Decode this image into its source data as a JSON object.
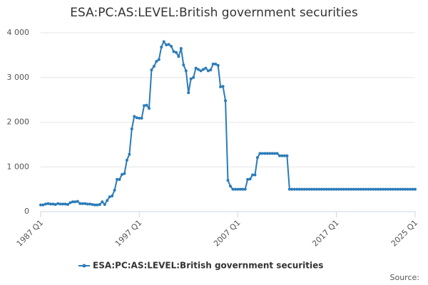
{
  "chart_data": {
    "type": "line",
    "title": "ESA:PC:AS:LEVEL:British government securities",
    "source": "Source:",
    "categories": [
      "1987 Q1",
      null,
      null,
      null,
      null,
      null,
      null,
      null,
      null,
      null,
      null,
      null,
      null,
      null,
      null,
      null,
      null,
      null,
      null,
      null,
      null,
      null,
      null,
      null,
      null,
      null,
      null,
      null,
      null,
      null,
      null,
      null,
      null,
      null,
      null,
      null,
      null,
      null,
      null,
      null,
      "1997 Q1",
      null,
      null,
      null,
      null,
      null,
      null,
      null,
      null,
      null,
      null,
      null,
      null,
      null,
      null,
      null,
      null,
      null,
      null,
      null,
      null,
      null,
      null,
      null,
      null,
      null,
      null,
      null,
      null,
      null,
      null,
      null,
      null,
      null,
      null,
      null,
      null,
      null,
      null,
      null,
      "2007 Q1",
      null,
      null,
      null,
      null,
      null,
      null,
      null,
      null,
      null,
      null,
      null,
      null,
      null,
      null,
      null,
      null,
      null,
      null,
      null,
      null,
      null,
      null,
      null,
      null,
      null,
      null,
      null,
      null,
      null,
      null,
      null,
      null,
      null,
      null,
      null,
      null,
      null,
      null,
      null,
      "2017 Q1",
      null,
      null,
      null,
      null,
      null,
      null,
      null,
      null,
      null,
      null,
      null,
      null,
      null,
      null,
      null,
      null,
      null,
      null,
      null,
      null,
      null,
      null,
      null,
      null,
      null,
      null,
      null,
      null,
      null,
      null,
      null,
      "2025 Q1"
    ],
    "series": [
      {
        "name": "ESA:PC:AS:LEVEL:British government securities",
        "color": "#2b7bb9",
        "values": [
          150,
          150,
          170,
          180,
          170,
          170,
          160,
          180,
          170,
          170,
          170,
          160,
          200,
          220,
          220,
          230,
          180,
          180,
          180,
          170,
          170,
          160,
          150,
          150,
          160,
          220,
          160,
          250,
          330,
          350,
          480,
          720,
          720,
          830,
          850,
          1150,
          1280,
          1850,
          2130,
          2100,
          2090,
          2090,
          2370,
          2380,
          2310,
          3170,
          3250,
          3360,
          3400,
          3680,
          3800,
          3730,
          3740,
          3700,
          3580,
          3560,
          3470,
          3650,
          3280,
          3150,
          2660,
          2970,
          3000,
          3210,
          3180,
          3150,
          3180,
          3210,
          3150,
          3170,
          3300,
          3300,
          3270,
          2790,
          2800,
          2480,
          700,
          570,
          500,
          500,
          500,
          500,
          500,
          500,
          720,
          730,
          820,
          820,
          1210,
          1300,
          1300,
          1300,
          1300,
          1300,
          1300,
          1300,
          1300,
          1250,
          1250,
          1250,
          1250,
          500,
          500,
          500,
          500,
          500,
          500,
          500,
          500,
          500,
          500,
          500,
          500,
          500,
          500,
          500,
          500,
          500,
          500,
          500,
          500,
          500,
          500,
          500,
          500,
          500,
          500,
          500,
          500,
          500,
          500,
          500,
          500,
          500,
          500,
          500,
          500,
          500,
          500,
          500,
          500,
          500,
          500,
          500,
          500,
          500,
          500,
          500,
          500,
          500,
          500,
          500,
          500
        ]
      }
    ],
    "ylim": [
      0,
      4000
    ],
    "yticks": [
      0,
      {
        "value": 1000,
        "label": "1 000"
      },
      {
        "value": 2000,
        "label": "2 000"
      },
      {
        "value": 3000,
        "label": "3 000"
      },
      {
        "value": 4000,
        "label": "4 000"
      }
    ],
    "grid": true,
    "legend": "bottom"
  }
}
